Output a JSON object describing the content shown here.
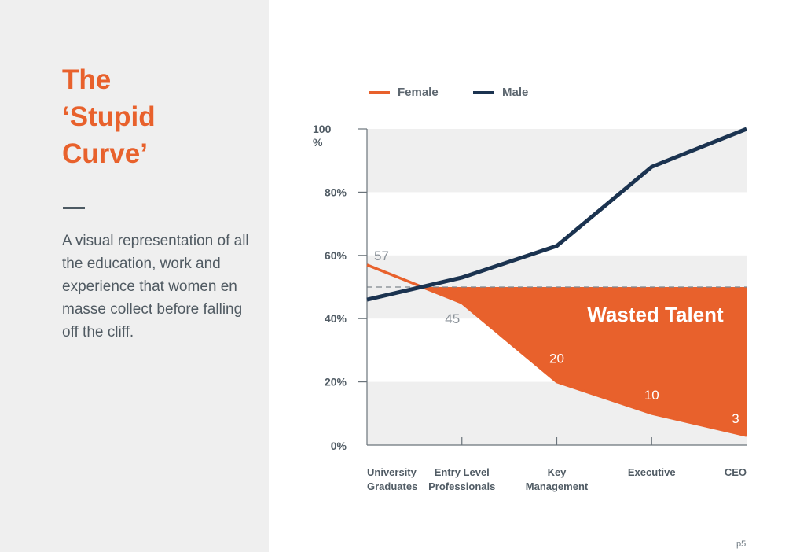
{
  "slide": {
    "title_lines": [
      "The",
      "‘Stupid",
      "Curve’"
    ],
    "description": "A visual representation of all the education, work and experience that women en masse collect before falling off the cliff.",
    "page_number": "p5"
  },
  "chart_data": {
    "type": "line",
    "categories": [
      [
        "University",
        "Graduates"
      ],
      [
        "Entry  Level",
        "Professionals"
      ],
      [
        "Key",
        "Management"
      ],
      [
        "Executive"
      ],
      [
        "CEO"
      ]
    ],
    "series": [
      {
        "name": "Female",
        "color": "#e8612c",
        "values": [
          57,
          45,
          20,
          10,
          3
        ],
        "data_labels": [
          "57",
          "45",
          "20",
          "10",
          "3"
        ]
      },
      {
        "name": "Male",
        "color": "#1b3350",
        "values": [
          46,
          53,
          63,
          88,
          100
        ]
      }
    ],
    "y_ticks": [
      {
        "value": 100,
        "label": [
          "100",
          "%"
        ]
      },
      {
        "value": 80,
        "label": [
          "80%"
        ]
      },
      {
        "value": 60,
        "label": [
          "60%"
        ]
      },
      {
        "value": 40,
        "label": [
          "40%"
        ]
      },
      {
        "value": 20,
        "label": [
          "20%"
        ]
      },
      {
        "value": 0,
        "label": [
          "0%"
        ]
      }
    ],
    "ylim": [
      0,
      100
    ],
    "reference_line": 50,
    "shaded_area": {
      "label": "Wasted Talent",
      "color": "#e8612c",
      "between": "reference line and Female line"
    },
    "band_color": "#efefef",
    "grid": "alternating horizontal bands",
    "legend_position": "top-left"
  }
}
